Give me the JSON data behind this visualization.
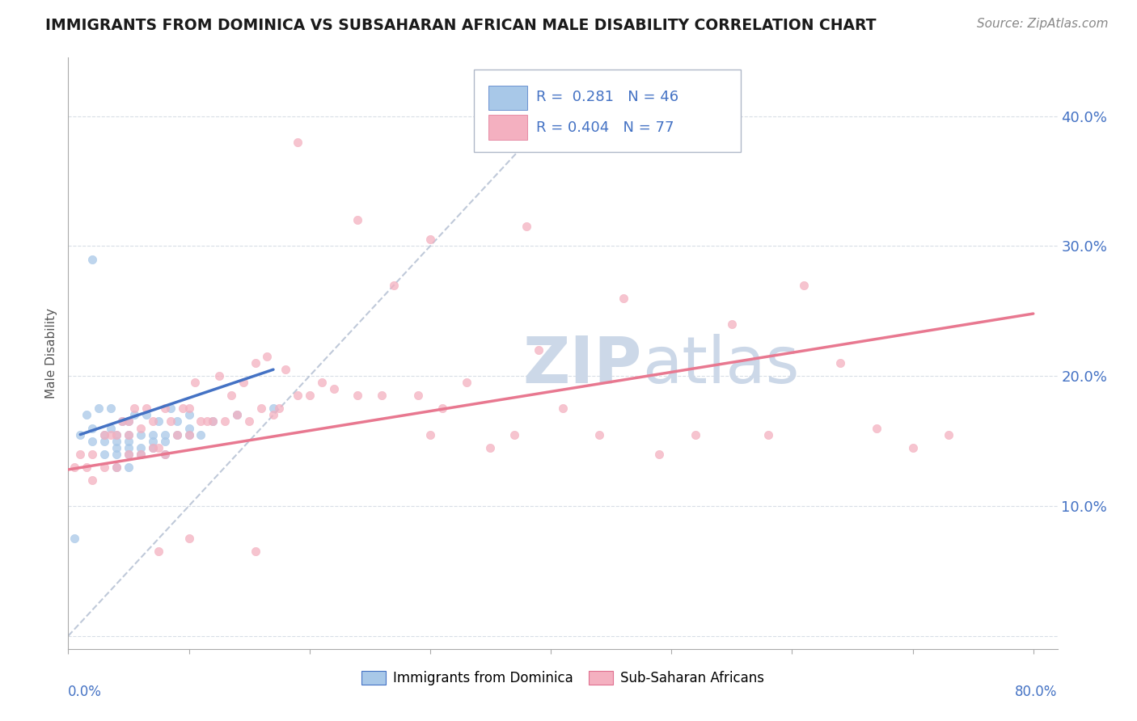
{
  "title": "IMMIGRANTS FROM DOMINICA VS SUBSAHARAN AFRICAN MALE DISABILITY CORRELATION CHART",
  "source": "Source: ZipAtlas.com",
  "ylabel": "Male Disability",
  "yticks": [
    0.0,
    0.1,
    0.2,
    0.3,
    0.4
  ],
  "ytick_labels": [
    "",
    "10.0%",
    "20.0%",
    "30.0%",
    "40.0%"
  ],
  "xlim": [
    0.0,
    0.82
  ],
  "ylim": [
    -0.01,
    0.445
  ],
  "color_blue": "#a8c8e8",
  "color_pink": "#f4b0c0",
  "color_blue_text": "#4472c4",
  "color_pink_text": "#e07090",
  "color_trend_blue": "#4472c4",
  "color_trend_pink": "#e87890",
  "color_ref_line": "#b0bcd0",
  "watermark_color": "#ccd8e8",
  "blue_scatter_x": [
    0.005,
    0.01,
    0.015,
    0.02,
    0.02,
    0.025,
    0.03,
    0.03,
    0.03,
    0.035,
    0.035,
    0.04,
    0.04,
    0.04,
    0.04,
    0.04,
    0.045,
    0.05,
    0.05,
    0.05,
    0.05,
    0.05,
    0.05,
    0.055,
    0.06,
    0.06,
    0.06,
    0.065,
    0.07,
    0.07,
    0.07,
    0.075,
    0.08,
    0.08,
    0.08,
    0.085,
    0.09,
    0.09,
    0.1,
    0.1,
    0.1,
    0.11,
    0.12,
    0.14,
    0.17,
    0.02
  ],
  "blue_scatter_y": [
    0.075,
    0.155,
    0.17,
    0.15,
    0.16,
    0.175,
    0.14,
    0.15,
    0.155,
    0.16,
    0.175,
    0.13,
    0.14,
    0.145,
    0.15,
    0.155,
    0.165,
    0.13,
    0.14,
    0.145,
    0.15,
    0.155,
    0.165,
    0.17,
    0.14,
    0.145,
    0.155,
    0.17,
    0.145,
    0.15,
    0.155,
    0.165,
    0.14,
    0.15,
    0.155,
    0.175,
    0.155,
    0.165,
    0.155,
    0.16,
    0.17,
    0.155,
    0.165,
    0.17,
    0.175,
    0.29
  ],
  "pink_scatter_x": [
    0.005,
    0.01,
    0.015,
    0.02,
    0.02,
    0.03,
    0.03,
    0.035,
    0.04,
    0.04,
    0.045,
    0.05,
    0.05,
    0.05,
    0.055,
    0.06,
    0.06,
    0.065,
    0.07,
    0.07,
    0.075,
    0.08,
    0.08,
    0.085,
    0.09,
    0.095,
    0.1,
    0.1,
    0.105,
    0.11,
    0.115,
    0.12,
    0.125,
    0.13,
    0.135,
    0.14,
    0.145,
    0.15,
    0.155,
    0.16,
    0.165,
    0.17,
    0.175,
    0.18,
    0.19,
    0.2,
    0.21,
    0.22,
    0.24,
    0.26,
    0.27,
    0.29,
    0.3,
    0.31,
    0.33,
    0.35,
    0.37,
    0.39,
    0.41,
    0.44,
    0.46,
    0.49,
    0.52,
    0.55,
    0.58,
    0.61,
    0.64,
    0.67,
    0.7,
    0.73,
    0.075,
    0.1,
    0.155,
    0.19,
    0.24,
    0.3,
    0.38
  ],
  "pink_scatter_y": [
    0.13,
    0.14,
    0.13,
    0.12,
    0.14,
    0.13,
    0.155,
    0.155,
    0.13,
    0.155,
    0.165,
    0.14,
    0.155,
    0.165,
    0.175,
    0.14,
    0.16,
    0.175,
    0.145,
    0.165,
    0.145,
    0.14,
    0.175,
    0.165,
    0.155,
    0.175,
    0.155,
    0.175,
    0.195,
    0.165,
    0.165,
    0.165,
    0.2,
    0.165,
    0.185,
    0.17,
    0.195,
    0.165,
    0.21,
    0.175,
    0.215,
    0.17,
    0.175,
    0.205,
    0.185,
    0.185,
    0.195,
    0.19,
    0.185,
    0.185,
    0.27,
    0.185,
    0.155,
    0.175,
    0.195,
    0.145,
    0.155,
    0.22,
    0.175,
    0.155,
    0.26,
    0.14,
    0.155,
    0.24,
    0.155,
    0.27,
    0.21,
    0.16,
    0.145,
    0.155,
    0.065,
    0.075,
    0.065,
    0.38,
    0.32,
    0.305,
    0.315
  ],
  "blue_trend_x": [
    0.01,
    0.17
  ],
  "blue_trend_y": [
    0.155,
    0.205
  ],
  "pink_trend_x": [
    0.0,
    0.8
  ],
  "pink_trend_y": [
    0.128,
    0.248
  ],
  "ref_line_x": [
    0.0,
    0.43
  ],
  "ref_line_y": [
    0.0,
    0.43
  ]
}
